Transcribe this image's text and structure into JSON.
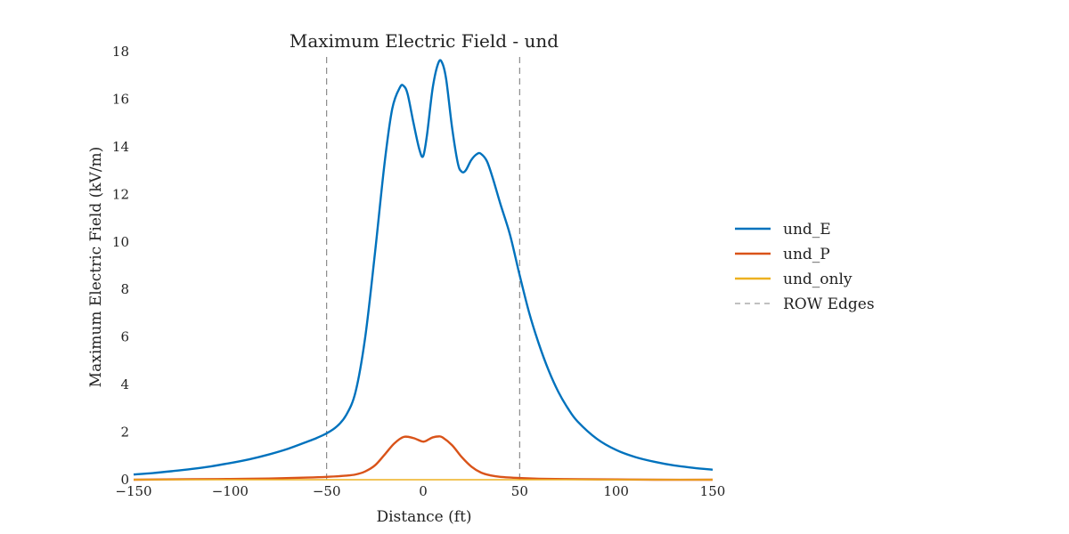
{
  "chart_data": {
    "type": "line",
    "title": "Maximum Electric Field - und",
    "xlabel": "Distance (ft)",
    "ylabel": "Maximum Electric Field (kV/m)",
    "xlim": [
      -150,
      150
    ],
    "ylim": [
      0,
      18
    ],
    "xticks": [
      -150,
      -100,
      -50,
      0,
      50,
      100,
      150
    ],
    "yticks": [
      0,
      2,
      4,
      6,
      8,
      10,
      12,
      14,
      16,
      18
    ],
    "grid": false,
    "legend_position": "right",
    "row_edges": {
      "name": "ROW Edges",
      "x": [
        -50,
        50
      ],
      "color": "#808080"
    },
    "series": [
      {
        "name": "und_E",
        "color": "#0072bd",
        "x": [
          -150,
          -140,
          -130,
          -120,
          -110,
          -100,
          -90,
          -80,
          -70,
          -60,
          -55,
          -50,
          -45,
          -40,
          -35,
          -30,
          -25,
          -20,
          -16,
          -12,
          -10,
          -8,
          -5,
          -2,
          0,
          2,
          5,
          8,
          10,
          12,
          15,
          18,
          20,
          22,
          25,
          28,
          30,
          33,
          36,
          40,
          45,
          50,
          55,
          60,
          65,
          70,
          75,
          80,
          90,
          100,
          110,
          120,
          130,
          140,
          150
        ],
        "y": [
          0.22,
          0.28,
          0.36,
          0.45,
          0.56,
          0.7,
          0.86,
          1.06,
          1.3,
          1.6,
          1.76,
          1.95,
          2.22,
          2.7,
          3.7,
          6.0,
          9.5,
          13.3,
          15.6,
          16.5,
          16.55,
          16.2,
          15.0,
          13.9,
          13.6,
          14.5,
          16.5,
          17.55,
          17.5,
          16.8,
          14.8,
          13.3,
          12.95,
          13.0,
          13.45,
          13.7,
          13.7,
          13.4,
          12.7,
          11.6,
          10.3,
          8.6,
          7.0,
          5.7,
          4.6,
          3.7,
          3.0,
          2.45,
          1.72,
          1.25,
          0.95,
          0.75,
          0.6,
          0.5,
          0.42
        ]
      },
      {
        "name": "und_P",
        "color": "#d95319",
        "x": [
          -150,
          -120,
          -100,
          -80,
          -60,
          -50,
          -40,
          -35,
          -30,
          -25,
          -20,
          -15,
          -10,
          -5,
          0,
          3,
          5,
          8,
          10,
          15,
          20,
          25,
          30,
          35,
          40,
          50,
          60,
          80,
          100,
          120,
          150
        ],
        "y": [
          0.0,
          0.02,
          0.03,
          0.05,
          0.09,
          0.12,
          0.17,
          0.22,
          0.35,
          0.6,
          1.05,
          1.52,
          1.8,
          1.75,
          1.6,
          1.7,
          1.78,
          1.82,
          1.78,
          1.45,
          0.95,
          0.55,
          0.3,
          0.18,
          0.12,
          0.07,
          0.04,
          0.02,
          0.01,
          0.0,
          0.0
        ]
      },
      {
        "name": "und_only",
        "color": "#edb120",
        "x": [
          -150,
          150
        ],
        "y": [
          0.0,
          0.0
        ]
      }
    ]
  }
}
